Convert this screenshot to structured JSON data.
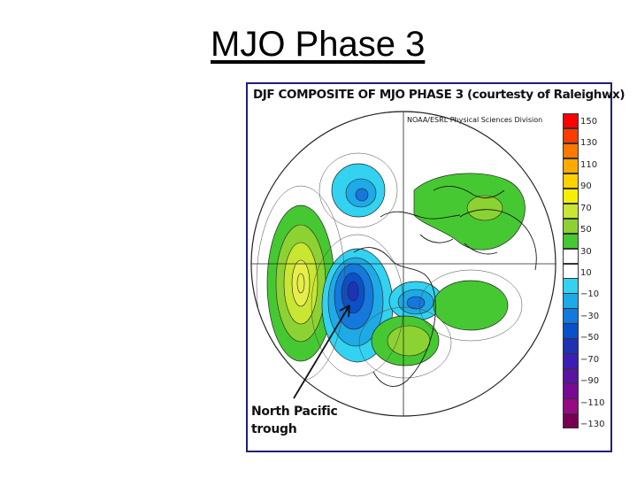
{
  "slide": {
    "title": "MJO Phase 3"
  },
  "figure": {
    "title": "DJF COMPOSITE OF MJO PHASE 3 (courtesty of Raleighwx)",
    "credit": "NOAA/ESRL Physical Sciences Division",
    "annotation_lines": [
      "North Pacific",
      "trough"
    ]
  },
  "colorbar": {
    "labels": [
      "150",
      "130",
      "110",
      "90",
      "70",
      "50",
      "30",
      "10",
      "−10",
      "−30",
      "−50",
      "−70",
      "−90",
      "−110",
      "−130"
    ],
    "colors": [
      "#ff0000",
      "#ff3c00",
      "#ff7800",
      "#ffaa00",
      "#ffd200",
      "#f5f000",
      "#c8e632",
      "#8cd232",
      "#46c832",
      "#ffffff",
      "#ffffff",
      "#32d2f0",
      "#1eaae6",
      "#1478dc",
      "#0a50c8",
      "#1e32b4",
      "#3c1eb4",
      "#5a14a0",
      "#780a96",
      "#960a82",
      "#780050"
    ]
  }
}
